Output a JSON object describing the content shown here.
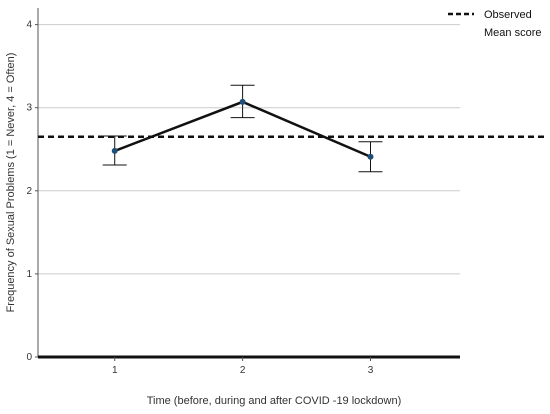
{
  "chart_data": {
    "type": "line",
    "xlabel": "Time (before, during and after COVID -19 lockdown)",
    "ylabel": "Frequency of Sexual Problems (1 = Never, 4 = Often)",
    "xlim": [
      0.4,
      3.7
    ],
    "ylim": [
      0,
      4.2
    ],
    "x_ticks": [
      "1",
      "2",
      "3"
    ],
    "y_ticks": [
      "0",
      "1",
      "2",
      "3",
      "4"
    ],
    "grid": "horizontal",
    "legend": {
      "placement": "top-right",
      "line1": "Observed",
      "line2": "Mean score"
    },
    "observed_mean": 2.65,
    "series": [
      {
        "x": [
          1,
          2,
          3
        ],
        "values": [
          2.48,
          3.07,
          2.41
        ],
        "error_low": [
          2.31,
          2.88,
          2.23
        ],
        "error_high": [
          2.66,
          3.27,
          2.59
        ]
      }
    ],
    "colors": {
      "line": "#111111",
      "marker": "#1f4e79",
      "grid": "#cccccc",
      "axis": "#111111"
    }
  }
}
